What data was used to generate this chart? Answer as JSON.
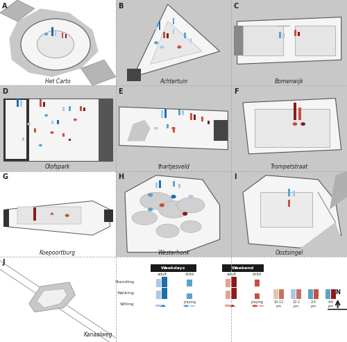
{
  "background_color": "#ffffff",
  "panel_bg": "#ffffff",
  "map_gray": "#c8c8c8",
  "map_light": "#efefef",
  "map_med": "#d9d9d9",
  "map_stroke": "#555555",
  "road_gray": "#b0b0b0",
  "blue_light": "#aec6e8",
  "blue_mid": "#5ba3c9",
  "blue_dark": "#1a6faf",
  "red_light": "#e8a090",
  "red_mid": "#c85040",
  "red_dark": "#8b1a1a",
  "panels": [
    {
      "label": "A",
      "name": "Het Carto",
      "row": 0,
      "col": 0
    },
    {
      "label": "B",
      "name": "Achtertuin",
      "row": 0,
      "col": 1
    },
    {
      "label": "C",
      "name": "Bomenwijk",
      "row": 0,
      "col": 2
    },
    {
      "label": "D",
      "name": "Olofspark",
      "row": 1,
      "col": 0
    },
    {
      "label": "E",
      "name": "thartjesveld",
      "row": 1,
      "col": 1
    },
    {
      "label": "F",
      "name": "Trompetstraat",
      "row": 1,
      "col": 2
    },
    {
      "label": "G",
      "name": "Koepoortburg",
      "row": 2,
      "col": 0
    },
    {
      "label": "H",
      "name": "Westerhonk",
      "row": 2,
      "col": 1
    },
    {
      "label": "I",
      "name": "Oostsingel",
      "row": 2,
      "col": 2
    },
    {
      "label": "J",
      "name": "Kanaalweg",
      "row": 3,
      "col": 0
    }
  ],
  "time_colors_left": [
    "#e8c4b0",
    "#aec6e8",
    "#5ba3c9",
    "#5ba3c9"
  ],
  "time_colors_right": [
    "#c87060",
    "#c87060",
    "#c85040",
    "#8b1a1a"
  ],
  "time_labels": [
    "10-12\nam",
    "12-2\npm",
    "2-4\npm",
    "4-6\npm"
  ]
}
